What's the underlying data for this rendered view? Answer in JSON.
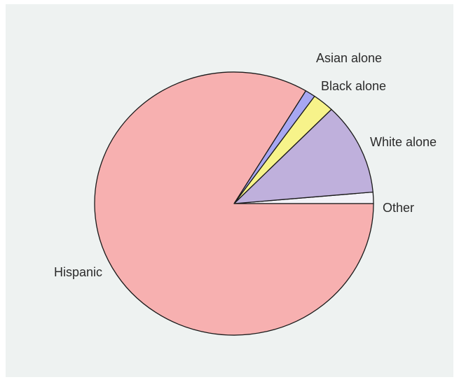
{
  "chart_data": {
    "type": "pie",
    "title": "",
    "start_angle_deg": 0,
    "direction": "counterclockwise",
    "slices": [
      {
        "label": "Other",
        "value": 1.4,
        "color": "#f3f3f8"
      },
      {
        "label": "White alone",
        "value": 11.3,
        "color": "#bfb0dc"
      },
      {
        "label": "Black alone",
        "value": 2.5,
        "color": "#f7f38a"
      },
      {
        "label": "Asian alone",
        "value": 1.2,
        "color": "#a7a7f2"
      },
      {
        "label": "Hispanic",
        "value": 83.6,
        "color": "#f7b0b0"
      }
    ],
    "outline_color": "#1a1a1a",
    "background_color": "#eef2f1"
  }
}
